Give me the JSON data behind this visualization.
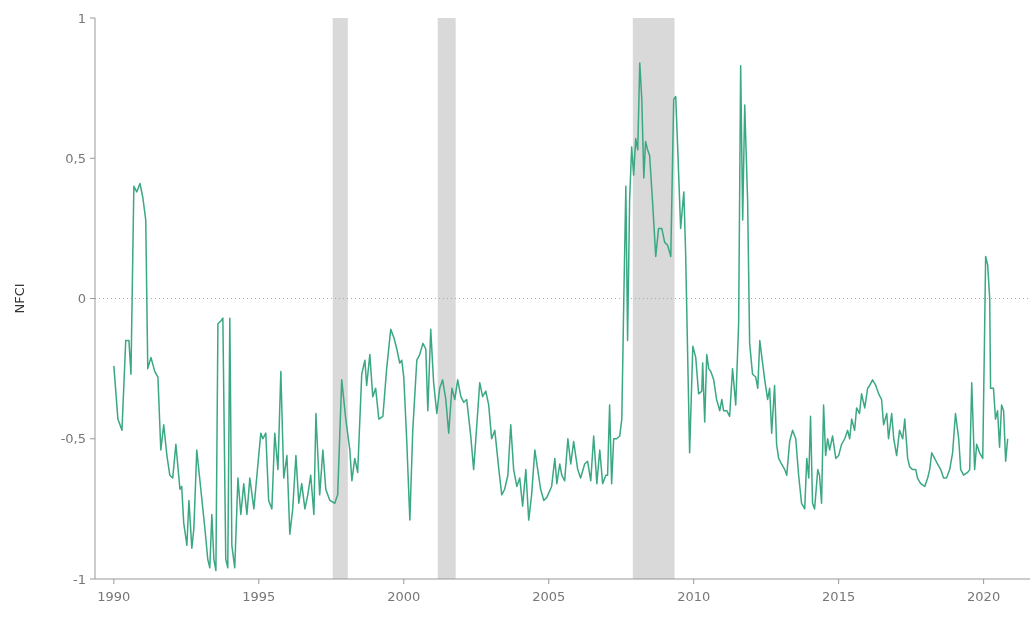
{
  "chart_data": {
    "type": "line",
    "ylabel": "NFCI",
    "xlim": [
      1989.35,
      2021.6
    ],
    "ylim": [
      -1,
      1
    ],
    "xticks": [
      1990,
      1995,
      2000,
      2005,
      2010,
      2015,
      2020
    ],
    "yticks": [
      {
        "value": -1,
        "label": "-1"
      },
      {
        "value": -0.5,
        "label": "-0,5"
      },
      {
        "value": 0,
        "label": "0"
      },
      {
        "value": 0.5,
        "label": "0,5"
      },
      {
        "value": 1,
        "label": "1"
      }
    ],
    "grid": false,
    "line_style": "solid",
    "marker": "none",
    "ref_lines": [
      {
        "axis": "y",
        "value": 0,
        "color": "#aaaaaa",
        "line_style": "dotted"
      }
    ],
    "bands": [
      {
        "axis": "x",
        "from": 1997.55,
        "to": 1998.07,
        "color": "#d9d9d9"
      },
      {
        "axis": "x",
        "from": 2001.17,
        "to": 2001.79,
        "color": "#d9d9d9"
      },
      {
        "axis": "x",
        "from": 2007.9,
        "to": 2009.34,
        "color": "#d9d9d9"
      }
    ],
    "series": [
      {
        "color": "#3aa882",
        "x": [
          1990.0,
          1990.14,
          1990.28,
          1990.41,
          1990.52,
          1990.59,
          1990.69,
          1990.79,
          1990.9,
          1991.0,
          1991.1,
          1991.17,
          1991.28,
          1991.41,
          1991.52,
          1991.62,
          1991.72,
          1991.83,
          1991.93,
          1992.03,
          1992.14,
          1992.28,
          1992.34,
          1992.41,
          1992.52,
          1992.59,
          1992.69,
          1992.76,
          1992.86,
          1993.0,
          1993.14,
          1993.24,
          1993.31,
          1993.38,
          1993.45,
          1993.52,
          1993.59,
          1993.69,
          1993.76,
          1993.86,
          1993.93,
          1994.0,
          1994.07,
          1994.17,
          1994.28,
          1994.38,
          1994.48,
          1994.59,
          1994.69,
          1994.83,
          1994.97,
          1995.07,
          1995.14,
          1995.24,
          1995.34,
          1995.45,
          1995.55,
          1995.66,
          1995.76,
          1995.86,
          1995.97,
          1996.07,
          1996.17,
          1996.28,
          1996.38,
          1996.48,
          1996.59,
          1996.69,
          1996.79,
          1996.9,
          1996.97,
          1997.1,
          1997.21,
          1997.31,
          1997.45,
          1997.62,
          1997.72,
          1997.86,
          1998.0,
          1998.14,
          1998.21,
          1998.31,
          1998.41,
          1998.55,
          1998.66,
          1998.72,
          1998.83,
          1998.93,
          1999.03,
          1999.14,
          1999.28,
          1999.41,
          1999.55,
          1999.66,
          1999.76,
          1999.86,
          1999.93,
          2000.0,
          2000.1,
          2000.21,
          2000.31,
          2000.45,
          2000.55,
          2000.66,
          2000.76,
          2000.83,
          2000.93,
          2001.03,
          2001.14,
          2001.24,
          2001.34,
          2001.45,
          2001.55,
          2001.66,
          2001.76,
          2001.86,
          2001.97,
          2002.07,
          2002.17,
          2002.31,
          2002.41,
          2002.52,
          2002.62,
          2002.72,
          2002.83,
          2002.93,
          2003.03,
          2003.14,
          2003.28,
          2003.38,
          2003.48,
          2003.59,
          2003.69,
          2003.79,
          2003.9,
          2004.0,
          2004.1,
          2004.21,
          2004.31,
          2004.41,
          2004.52,
          2004.62,
          2004.72,
          2004.83,
          2004.93,
          2005.1,
          2005.21,
          2005.28,
          2005.38,
          2005.45,
          2005.55,
          2005.66,
          2005.76,
          2005.86,
          2006.0,
          2006.1,
          2006.24,
          2006.34,
          2006.45,
          2006.55,
          2006.66,
          2006.76,
          2006.86,
          2006.97,
          2007.03,
          2007.1,
          2007.17,
          2007.24,
          2007.34,
          2007.45,
          2007.52,
          2007.59,
          2007.66,
          2007.72,
          2007.79,
          2007.86,
          2007.93,
          2008.0,
          2008.07,
          2008.14,
          2008.21,
          2008.28,
          2008.34,
          2008.41,
          2008.48,
          2008.59,
          2008.69,
          2008.79,
          2008.9,
          2009.0,
          2009.1,
          2009.21,
          2009.31,
          2009.38,
          2009.45,
          2009.55,
          2009.66,
          2009.72,
          2009.86,
          2009.97,
          2010.07,
          2010.17,
          2010.28,
          2010.31,
          2010.38,
          2010.45,
          2010.52,
          2010.59,
          2010.69,
          2010.79,
          2010.9,
          2010.97,
          2011.03,
          2011.14,
          2011.24,
          2011.34,
          2011.45,
          2011.55,
          2011.62,
          2011.69,
          2011.76,
          2011.86,
          2011.93,
          2012.03,
          2012.14,
          2012.21,
          2012.28,
          2012.34,
          2012.45,
          2012.55,
          2012.62,
          2012.69,
          2012.79,
          2012.86,
          2012.93,
          2013.03,
          2013.14,
          2013.21,
          2013.31,
          2013.41,
          2013.52,
          2013.62,
          2013.72,
          2013.83,
          2013.9,
          2013.97,
          2014.03,
          2014.1,
          2014.17,
          2014.28,
          2014.34,
          2014.41,
          2014.48,
          2014.55,
          2014.62,
          2014.69,
          2014.79,
          2014.9,
          2015.0,
          2015.1,
          2015.21,
          2015.31,
          2015.38,
          2015.45,
          2015.55,
          2015.62,
          2015.72,
          2015.79,
          2015.9,
          2016.0,
          2016.07,
          2016.17,
          2016.28,
          2016.38,
          2016.48,
          2016.55,
          2016.66,
          2016.72,
          2016.83,
          2016.9,
          2017.0,
          2017.1,
          2017.21,
          2017.28,
          2017.38,
          2017.45,
          2017.55,
          2017.66,
          2017.72,
          2017.83,
          2017.97,
          2018.07,
          2018.14,
          2018.21,
          2018.31,
          2018.41,
          2018.52,
          2018.62,
          2018.72,
          2018.83,
          2018.93,
          2019.03,
          2019.14,
          2019.21,
          2019.31,
          2019.45,
          2019.52,
          2019.59,
          2019.69,
          2019.76,
          2019.86,
          2019.97,
          2020.03,
          2020.07,
          2020.14,
          2020.21,
          2020.24,
          2020.34,
          2020.41,
          2020.48,
          2020.55,
          2020.62,
          2020.69,
          2020.76,
          2020.83
        ],
        "values": [
          -0.24,
          -0.43,
          -0.47,
          -0.15,
          -0.15,
          -0.27,
          0.4,
          0.38,
          0.41,
          0.36,
          0.28,
          -0.25,
          -0.21,
          -0.26,
          -0.28,
          -0.54,
          -0.45,
          -0.56,
          -0.63,
          -0.64,
          -0.52,
          -0.68,
          -0.67,
          -0.8,
          -0.88,
          -0.72,
          -0.89,
          -0.82,
          -0.54,
          -0.68,
          -0.82,
          -0.93,
          -0.96,
          -0.77,
          -0.93,
          -0.97,
          -0.09,
          -0.08,
          -0.07,
          -0.93,
          -0.96,
          -0.07,
          -0.88,
          -0.96,
          -0.64,
          -0.77,
          -0.66,
          -0.77,
          -0.64,
          -0.75,
          -0.59,
          -0.48,
          -0.5,
          -0.48,
          -0.72,
          -0.75,
          -0.48,
          -0.61,
          -0.26,
          -0.64,
          -0.56,
          -0.84,
          -0.75,
          -0.56,
          -0.73,
          -0.66,
          -0.75,
          -0.7,
          -0.63,
          -0.77,
          -0.41,
          -0.7,
          -0.54,
          -0.68,
          -0.72,
          -0.73,
          -0.7,
          -0.29,
          -0.43,
          -0.54,
          -0.65,
          -0.57,
          -0.62,
          -0.27,
          -0.22,
          -0.31,
          -0.2,
          -0.35,
          -0.32,
          -0.43,
          -0.42,
          -0.25,
          -0.11,
          -0.14,
          -0.18,
          -0.23,
          -0.22,
          -0.28,
          -0.5,
          -0.79,
          -0.47,
          -0.22,
          -0.2,
          -0.16,
          -0.18,
          -0.4,
          -0.11,
          -0.3,
          -0.41,
          -0.32,
          -0.29,
          -0.36,
          -0.48,
          -0.32,
          -0.36,
          -0.29,
          -0.35,
          -0.37,
          -0.36,
          -0.49,
          -0.61,
          -0.45,
          -0.3,
          -0.35,
          -0.33,
          -0.38,
          -0.5,
          -0.47,
          -0.61,
          -0.7,
          -0.68,
          -0.63,
          -0.45,
          -0.61,
          -0.67,
          -0.64,
          -0.74,
          -0.61,
          -0.79,
          -0.7,
          -0.54,
          -0.61,
          -0.68,
          -0.72,
          -0.71,
          -0.67,
          -0.57,
          -0.66,
          -0.59,
          -0.63,
          -0.65,
          -0.5,
          -0.59,
          -0.51,
          -0.61,
          -0.64,
          -0.59,
          -0.58,
          -0.65,
          -0.49,
          -0.66,
          -0.54,
          -0.66,
          -0.63,
          -0.63,
          -0.38,
          -0.66,
          -0.5,
          -0.5,
          -0.49,
          -0.43,
          0.0,
          0.4,
          -0.15,
          0.35,
          0.54,
          0.44,
          0.57,
          0.53,
          0.84,
          0.71,
          0.43,
          0.56,
          0.53,
          0.51,
          0.33,
          0.15,
          0.25,
          0.25,
          0.2,
          0.19,
          0.15,
          0.71,
          0.72,
          0.53,
          0.25,
          0.38,
          0.17,
          -0.55,
          -0.17,
          -0.21,
          -0.34,
          -0.33,
          -0.23,
          -0.44,
          -0.2,
          -0.25,
          -0.26,
          -0.29,
          -0.36,
          -0.4,
          -0.36,
          -0.4,
          -0.4,
          -0.42,
          -0.25,
          -0.38,
          -0.09,
          0.83,
          0.28,
          0.69,
          0.35,
          -0.16,
          -0.27,
          -0.28,
          -0.32,
          -0.15,
          -0.2,
          -0.29,
          -0.36,
          -0.32,
          -0.48,
          -0.31,
          -0.52,
          -0.57,
          -0.59,
          -0.61,
          -0.63,
          -0.51,
          -0.47,
          -0.5,
          -0.63,
          -0.73,
          -0.75,
          -0.57,
          -0.64,
          -0.42,
          -0.73,
          -0.75,
          -0.61,
          -0.63,
          -0.73,
          -0.38,
          -0.56,
          -0.5,
          -0.54,
          -0.49,
          -0.57,
          -0.56,
          -0.52,
          -0.5,
          -0.47,
          -0.5,
          -0.43,
          -0.47,
          -0.39,
          -0.41,
          -0.34,
          -0.39,
          -0.32,
          -0.31,
          -0.29,
          -0.31,
          -0.34,
          -0.36,
          -0.45,
          -0.41,
          -0.5,
          -0.41,
          -0.5,
          -0.56,
          -0.47,
          -0.5,
          -0.43,
          -0.57,
          -0.6,
          -0.61,
          -0.61,
          -0.64,
          -0.66,
          -0.67,
          -0.64,
          -0.61,
          -0.55,
          -0.57,
          -0.59,
          -0.61,
          -0.64,
          -0.64,
          -0.61,
          -0.55,
          -0.41,
          -0.5,
          -0.61,
          -0.63,
          -0.62,
          -0.61,
          -0.3,
          -0.61,
          -0.52,
          -0.55,
          -0.57,
          -0.15,
          0.15,
          0.12,
          0.0,
          -0.32,
          -0.32,
          -0.43,
          -0.4,
          -0.53,
          -0.38,
          -0.4,
          -0.58,
          -0.5
        ]
      }
    ]
  }
}
